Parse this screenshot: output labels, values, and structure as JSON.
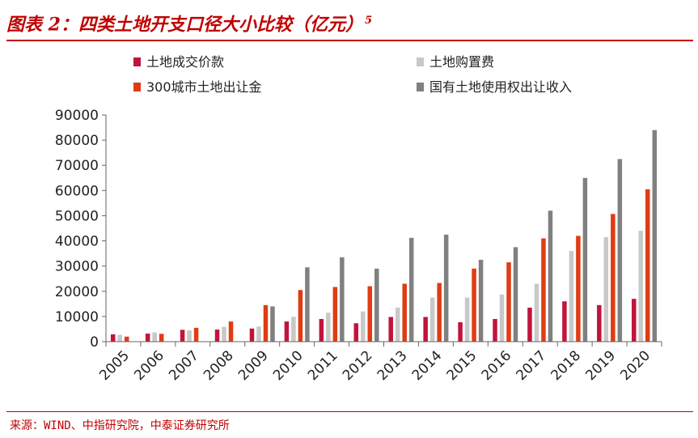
{
  "figure": {
    "title": "图表 2：四类土地开支口径大小比较（亿元）",
    "title_sup": "5",
    "source": "来源：WIND、中指研究院，中泰证券研究所"
  },
  "chart_data": {
    "type": "bar",
    "title": "图表 2：四类土地开支口径大小比较（亿元）",
    "xlabel": "",
    "ylabel": "",
    "ylim": [
      0,
      90000
    ],
    "yticks": [
      0,
      10000,
      20000,
      30000,
      40000,
      50000,
      60000,
      70000,
      80000,
      90000
    ],
    "grid": false,
    "legend_position": "top",
    "categories": [
      "2005",
      "2006",
      "2007",
      "2008",
      "2009",
      "2010",
      "2011",
      "2012",
      "2013",
      "2014",
      "2015",
      "2016",
      "2017",
      "2018",
      "2019",
      "2020"
    ],
    "series": [
      {
        "name": "土地成交价款",
        "color": "#c0143c",
        "values": [
          2900,
          3200,
          4700,
          4800,
          5200,
          8000,
          9000,
          7300,
          9800,
          9800,
          7700,
          9000,
          13500,
          16000,
          14500,
          17000
        ]
      },
      {
        "name": "土地购置费",
        "color": "#c8c8c8",
        "values": [
          2700,
          3700,
          4500,
          5900,
          6000,
          9900,
          11500,
          12000,
          13500,
          17500,
          17500,
          18700,
          23000,
          36000,
          41500,
          44000
        ]
      },
      {
        "name": "300城市土地出让金",
        "color": "#e03c14",
        "values": [
          2000,
          3100,
          5500,
          8000,
          14500,
          20500,
          21700,
          22000,
          23000,
          23300,
          29000,
          31500,
          41000,
          42000,
          50700,
          60500
        ]
      },
      {
        "name": "国有土地使用权出让收入",
        "color": "#808080",
        "values": [
          0,
          0,
          0,
          0,
          14000,
          29500,
          33500,
          29000,
          41200,
          42500,
          32500,
          37500,
          52000,
          65000,
          72500,
          84000
        ]
      }
    ]
  }
}
